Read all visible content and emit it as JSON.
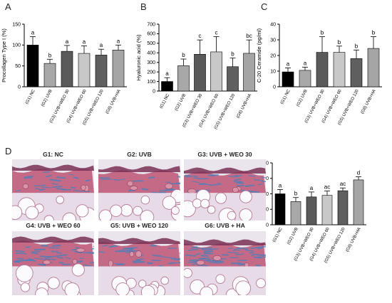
{
  "panel_labels": [
    "A",
    "B",
    "C",
    "D"
  ],
  "colors": {
    "bars": [
      "#000000",
      "#a8a8a8",
      "#5a5a5a",
      "#c8c8c8",
      "#5f5f5f",
      "#a5a5a5"
    ],
    "tissue_pink": "#c46a86",
    "collagen_blue": "#4f7fb8",
    "stain_dark": "#7a3055"
  },
  "micrographs": [
    {
      "title": "G1: NC"
    },
    {
      "title": "G2: UVB"
    },
    {
      "title": "G3: UVB + WEO 30"
    },
    {
      "title": "G4: UVB + WEO 60"
    },
    {
      "title": "G5: UVB + WEO 120"
    },
    {
      "title": "G6: UVB + HA"
    }
  ],
  "chart_data": [
    {
      "type": "bar",
      "panel": "A",
      "categories": [
        "(G1) NC",
        "(G2) UVB",
        "(G3) UVB+WEO 30",
        "(G4) UVB+WEO 60",
        "(G5) UVB+WEO 120",
        "(G6) UVB+HA"
      ],
      "values": [
        100,
        56,
        85,
        80,
        76,
        88
      ],
      "errors": [
        20,
        10,
        14,
        18,
        14,
        12
      ],
      "annotations": [
        "a",
        "b",
        "a",
        "a",
        "a",
        "a"
      ],
      "ylabel": "Procollagen Type I (%)",
      "ylim": [
        0,
        150
      ],
      "yticks": [
        0,
        50,
        100,
        150
      ]
    },
    {
      "type": "bar",
      "panel": "B",
      "categories": [
        "(G1) NC",
        "(G2) UVB",
        "(G3) UVB+WEO 30",
        "(G4) UVB+WEO 60",
        "(G5) UVB+WEO 120",
        "(G6) UVB+HA"
      ],
      "values": [
        100,
        265,
        385,
        410,
        255,
        395
      ],
      "errors": [
        40,
        70,
        150,
        160,
        90,
        140
      ],
      "annotations": [
        "a",
        "b",
        "c",
        "c",
        "b",
        "bc"
      ],
      "ylabel": "Hyaluronic acid (%)",
      "ylim": [
        0,
        700
      ],
      "yticks": [
        0,
        100,
        200,
        300,
        400,
        500,
        600,
        700
      ]
    },
    {
      "type": "bar",
      "panel": "C",
      "categories": [
        "(G1) NC",
        "(G2) UVB",
        "(G3) UVB+WEO 30",
        "(G4) UVB+WEO 60",
        "(G5) UVB+WEO 120",
        "(G6) UVB+HA"
      ],
      "values": [
        9.5,
        10.5,
        22,
        22,
        18,
        24.5
      ],
      "errors": [
        2.5,
        2,
        10,
        4,
        5.5,
        7.5
      ],
      "annotations": [
        "a",
        "a",
        "b",
        "b",
        "b",
        "b"
      ],
      "ylabel": "C-20 Ceramide (pg/ml)",
      "ylim": [
        0,
        40
      ],
      "yticks": [
        0,
        10,
        20,
        30,
        40
      ]
    },
    {
      "type": "bar",
      "panel": "D",
      "categories": [
        "(G1) NC",
        "(G2) UVB",
        "(G3) UVB+WEO 30",
        "(G4) UVB+WEO 60",
        "(G5) UVB+WEO 120",
        "(G6) UVB+HA"
      ],
      "values": [
        100,
        75,
        90,
        95,
        110,
        145
      ],
      "errors": [
        14,
        13,
        16,
        14,
        9,
        10
      ],
      "annotations": [
        "a",
        "b",
        "a",
        "ac",
        "ac",
        "d"
      ],
      "ylabel": "",
      "ylim": [
        0,
        200
      ],
      "yticks": [
        0,
        50,
        100,
        150,
        200
      ]
    }
  ]
}
